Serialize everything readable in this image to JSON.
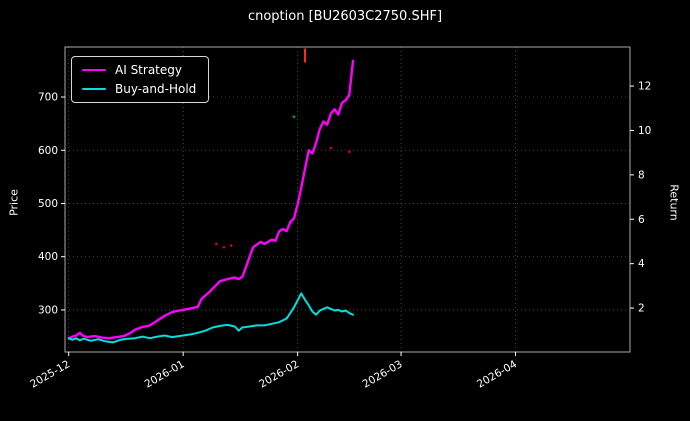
{
  "title": "cnoption [BU2603C2750.SHF]",
  "legend": {
    "items": [
      {
        "label": "AI Strategy",
        "color": "#ff00ff"
      },
      {
        "label": "Buy-and-Hold",
        "color": "#00dede"
      }
    ]
  },
  "colors": {
    "background": "#000000",
    "text": "#ffffff",
    "grid": "#555555",
    "spine": "#aaaaaa"
  },
  "chart_data": {
    "type": "line",
    "title": "cnoption [BU2603C2750.SHF]",
    "x_axis": {
      "note": "x values are days since 2025-12-01",
      "tick_labels": [
        "2025-12",
        "2026-01",
        "2026-02",
        "2026-03",
        "2026-04"
      ],
      "tick_days": [
        0,
        31,
        62,
        90,
        121
      ],
      "domain_days": [
        -1,
        152
      ],
      "label_rotation_deg": 30
    },
    "y_left": {
      "label": "Price",
      "ticks": [
        300,
        400,
        500,
        600,
        700
      ],
      "domain": [
        221,
        794
      ]
    },
    "y_right": {
      "label": "Return",
      "ticks": [
        2,
        4,
        6,
        8,
        10,
        12
      ],
      "domain": [
        0.02,
        13.76
      ]
    },
    "grid": true,
    "legend_position": "upper-left",
    "series": [
      {
        "name": "AI Strategy",
        "color": "#ff00ff",
        "width": 2.4,
        "points": [
          [
            0,
            247
          ],
          [
            1,
            250
          ],
          [
            2,
            252
          ],
          [
            3,
            257
          ],
          [
            4,
            251
          ],
          [
            5,
            249
          ],
          [
            7,
            251
          ],
          [
            9,
            248
          ],
          [
            11,
            247
          ],
          [
            13,
            249
          ],
          [
            15,
            251
          ],
          [
            17,
            258
          ],
          [
            18,
            263
          ],
          [
            20,
            268
          ],
          [
            22,
            271
          ],
          [
            24,
            280
          ],
          [
            26,
            289
          ],
          [
            28,
            296
          ],
          [
            30,
            299
          ],
          [
            31,
            300
          ],
          [
            33,
            303
          ],
          [
            35,
            306
          ],
          [
            36,
            321
          ],
          [
            38,
            333
          ],
          [
            40,
            347
          ],
          [
            41,
            354
          ],
          [
            43,
            358
          ],
          [
            45,
            361
          ],
          [
            46,
            358
          ],
          [
            47,
            362
          ],
          [
            48,
            380
          ],
          [
            49,
            400
          ],
          [
            50,
            418
          ],
          [
            52,
            428
          ],
          [
            53,
            424
          ],
          [
            55,
            432
          ],
          [
            56,
            430
          ],
          [
            57,
            448
          ],
          [
            58,
            452
          ],
          [
            59,
            448
          ],
          [
            60,
            465
          ],
          [
            61,
            472
          ],
          [
            62,
            498
          ],
          [
            63,
            530
          ],
          [
            64,
            565
          ],
          [
            65,
            600
          ],
          [
            66,
            594
          ],
          [
            67,
            614
          ],
          [
            68,
            640
          ],
          [
            69,
            654
          ],
          [
            70,
            648
          ],
          [
            71,
            669
          ],
          [
            72,
            677
          ],
          [
            73,
            667
          ],
          [
            74,
            689
          ],
          [
            75,
            694
          ],
          [
            76,
            704
          ],
          [
            77,
            768
          ]
        ]
      },
      {
        "name": "Buy-and-Hold",
        "color": "#00dede",
        "width": 2.0,
        "points": [
          [
            0,
            247
          ],
          [
            1,
            244
          ],
          [
            2,
            247
          ],
          [
            3,
            243
          ],
          [
            4,
            246
          ],
          [
            6,
            242
          ],
          [
            8,
            245
          ],
          [
            10,
            241
          ],
          [
            12,
            239
          ],
          [
            14,
            244
          ],
          [
            16,
            246
          ],
          [
            18,
            247
          ],
          [
            20,
            250
          ],
          [
            22,
            247
          ],
          [
            24,
            250
          ],
          [
            26,
            252
          ],
          [
            28,
            249
          ],
          [
            30,
            251
          ],
          [
            31,
            252
          ],
          [
            33,
            254
          ],
          [
            35,
            257
          ],
          [
            37,
            261
          ],
          [
            39,
            267
          ],
          [
            41,
            270
          ],
          [
            43,
            272
          ],
          [
            45,
            269
          ],
          [
            46,
            261
          ],
          [
            47,
            267
          ],
          [
            49,
            269
          ],
          [
            51,
            271
          ],
          [
            53,
            271
          ],
          [
            55,
            274
          ],
          [
            57,
            277
          ],
          [
            59,
            284
          ],
          [
            60,
            294
          ],
          [
            61,
            305
          ],
          [
            62,
            318
          ],
          [
            63,
            331
          ],
          [
            64,
            319
          ],
          [
            65,
            309
          ],
          [
            66,
            297
          ],
          [
            67,
            291
          ],
          [
            68,
            299
          ],
          [
            69,
            302
          ],
          [
            70,
            305
          ],
          [
            71,
            302
          ],
          [
            72,
            299
          ],
          [
            73,
            300
          ],
          [
            74,
            297
          ],
          [
            75,
            299
          ],
          [
            76,
            294
          ],
          [
            77,
            291
          ]
        ]
      }
    ],
    "scatter": [
      {
        "x": 64,
        "y": 778,
        "color": "#ff2a2a",
        "marker": "|"
      },
      {
        "x": 61,
        "y": 663,
        "color": "#00a000",
        "marker": "."
      },
      {
        "x": 71,
        "y": 604,
        "color": "#cc0000",
        "marker": "."
      },
      {
        "x": 76,
        "y": 597,
        "color": "#cc0000",
        "marker": "."
      },
      {
        "x": 40,
        "y": 424,
        "color": "#cc0000",
        "marker": "."
      },
      {
        "x": 42,
        "y": 418,
        "color": "#cc0000",
        "marker": "."
      },
      {
        "x": 44,
        "y": 421,
        "color": "#cc0000",
        "marker": "."
      }
    ]
  }
}
